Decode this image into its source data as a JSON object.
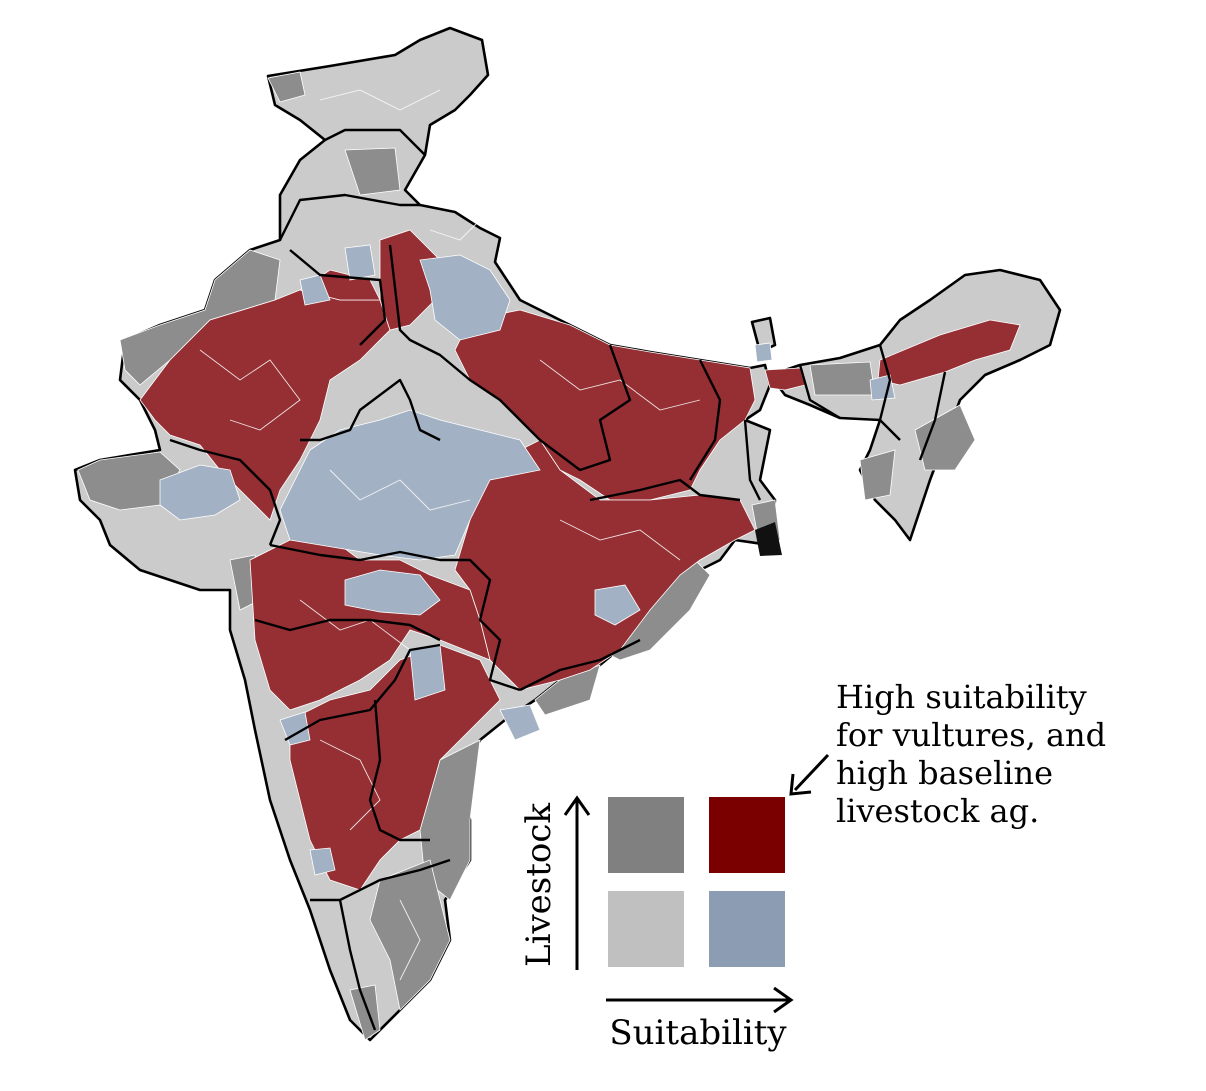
{
  "colors": {
    "low_suit_high_livestock": "#808080",
    "high_suit_high_livestock": "#7a0000",
    "low_suit_low_livestock": "#c0c0c0",
    "high_suit_low_livestock": "#8c9db3",
    "map_red": "#952f33",
    "map_blue": "#a3b1c4",
    "map_lightgray": "#cbcbcb",
    "map_darkgray": "#8d8d8d",
    "border": "#000000"
  },
  "legend": {
    "y_axis_label": "Livestock",
    "x_axis_label": "Suitability",
    "annotation_lines": [
      "High suitability",
      "for vultures, and",
      "high baseline",
      "livestock ag."
    ],
    "cells": [
      {
        "suitability": "low",
        "livestock": "high",
        "color_key": "low_suit_high_livestock"
      },
      {
        "suitability": "high",
        "livestock": "high",
        "color_key": "high_suit_high_livestock"
      },
      {
        "suitability": "low",
        "livestock": "low",
        "color_key": "low_suit_low_livestock"
      },
      {
        "suitability": "high",
        "livestock": "low",
        "color_key": "high_suit_low_livestock"
      }
    ]
  }
}
